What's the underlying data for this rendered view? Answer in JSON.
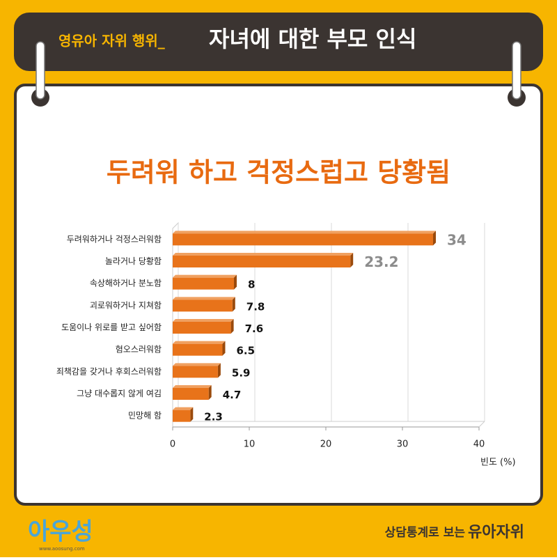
{
  "header": {
    "prefix": "영유아 자위 행위_",
    "title": "자녀에 대한 부모 인식"
  },
  "chart_data": {
    "type": "bar",
    "orientation": "horizontal",
    "title": "두려워 하고 걱정스럽고 당황됨",
    "categories": [
      "두려워하거나 걱정스러워함",
      "놀라거나 당황함",
      "속상해하거나 분노함",
      "괴로워하거나 지쳐함",
      "도움이나 위로를 받고 싶어함",
      "혐오스러워함",
      "죄책감을 갖거나 후회스러워함",
      "그냥 대수롭지 않게 여김",
      "민망해 함"
    ],
    "values": [
      34,
      23.2,
      8,
      7.8,
      7.6,
      6.5,
      5.9,
      4.7,
      2.3
    ],
    "value_label_colors": [
      "#8c8c8c",
      "#8c8c8c",
      "#111111",
      "#111111",
      "#111111",
      "#111111",
      "#111111",
      "#111111",
      "#111111"
    ],
    "color": "#e8731a",
    "xlim": [
      0,
      40
    ],
    "xticks": [
      0,
      10,
      20,
      30,
      40
    ],
    "xlabel": "빈도 (%)",
    "grid": true
  },
  "footer": {
    "logo": "아우성",
    "site": "www.aoosung.com",
    "caption_prefix": "상담통계로 보는",
    "caption": "유아자위"
  }
}
